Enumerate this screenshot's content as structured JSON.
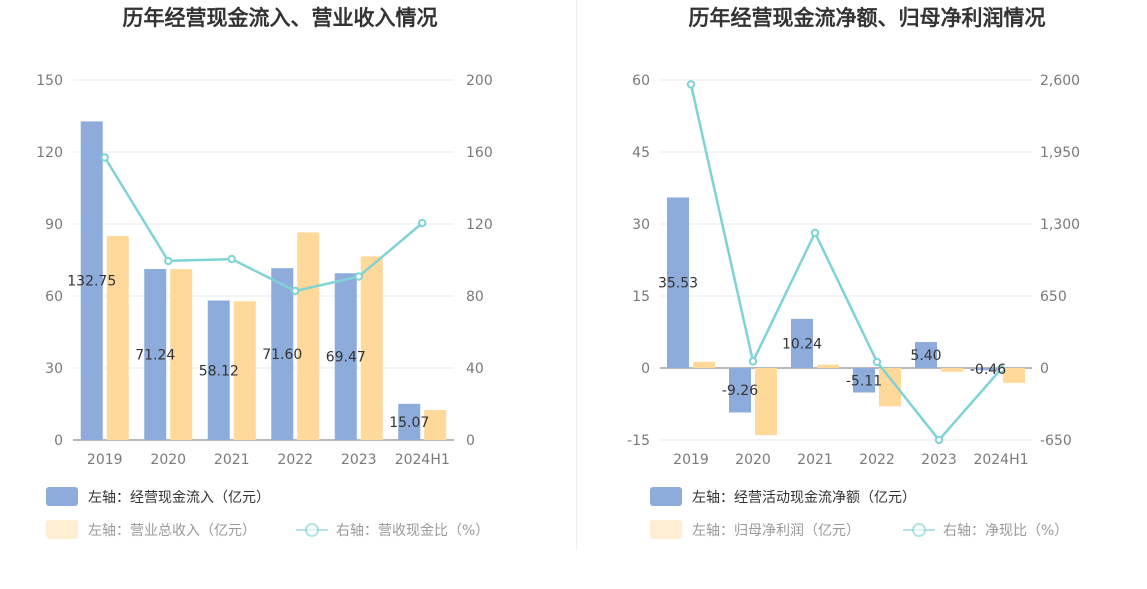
{
  "chart_data": [
    {
      "type": "bar",
      "title": "历年经营现金流入、营业收入情况",
      "categories": [
        "2019",
        "2020",
        "2021",
        "2022",
        "2023",
        "2024H1"
      ],
      "left_axis": {
        "ticks": [
          "150",
          "120",
          "90",
          "60",
          "30",
          "0"
        ],
        "range": [
          0,
          150
        ]
      },
      "right_axis": {
        "ticks": [
          "200",
          "160",
          "120",
          "80",
          "40",
          "0"
        ],
        "range": [
          0,
          200
        ]
      },
      "series": [
        {
          "name": "左轴：经营现金流入（亿元）",
          "axis": "left",
          "kind": "bar",
          "color": "#8eacdb",
          "values": [
            132.75,
            71.24,
            58.12,
            71.6,
            69.47,
            15.07
          ],
          "labels": [
            "132.75",
            "71.24",
            "58.12",
            "71.60",
            "69.47",
            "15.07"
          ]
        },
        {
          "name": "左轴：营业总收入（亿元）",
          "axis": "left",
          "kind": "bar",
          "color": "#ffd99a",
          "values": [
            85,
            71.2,
            57.8,
            86.5,
            76.5,
            12.5
          ]
        },
        {
          "name": "右轴：营收现金比（%）",
          "axis": "right",
          "kind": "line",
          "color": "#7fd3d6",
          "values": [
            157,
            99.5,
            100.5,
            82.8,
            90.8,
            120.5
          ]
        }
      ],
      "grid": true,
      "legend_position": "bottom"
    },
    {
      "type": "bar",
      "title": "历年经营现金流净额、归母净利润情况",
      "categories": [
        "2019",
        "2020",
        "2021",
        "2022",
        "2023",
        "2024H1"
      ],
      "left_axis": {
        "ticks": [
          "60",
          "45",
          "30",
          "15",
          "0",
          "-15"
        ],
        "range": [
          -15,
          60
        ]
      },
      "right_axis": {
        "ticks": [
          "2,600",
          "1,950",
          "1,300",
          "650",
          "0",
          "-650"
        ],
        "range": [
          -650,
          2600
        ]
      },
      "series": [
        {
          "name": "左轴：经营活动现金流净额（亿元）",
          "axis": "left",
          "kind": "bar",
          "color": "#8eacdb",
          "values": [
            35.53,
            -9.26,
            10.24,
            -5.11,
            5.4,
            -0.46
          ],
          "labels": [
            "35.53",
            "-9.26",
            "10.24",
            "-5.11",
            "5.40",
            "-0.46"
          ]
        },
        {
          "name": "左轴：归母净利润（亿元）",
          "axis": "left",
          "kind": "bar",
          "color": "#ffd99a",
          "values": [
            1.3,
            -14,
            0.7,
            -8,
            -0.8,
            -3.1
          ]
        },
        {
          "name": "右轴：净现比（%）",
          "axis": "right",
          "kind": "line",
          "color": "#7fd3d6",
          "values": [
            2560,
            60,
            1220,
            55,
            -650,
            -10
          ]
        }
      ],
      "grid": true,
      "legend_position": "bottom"
    }
  ]
}
